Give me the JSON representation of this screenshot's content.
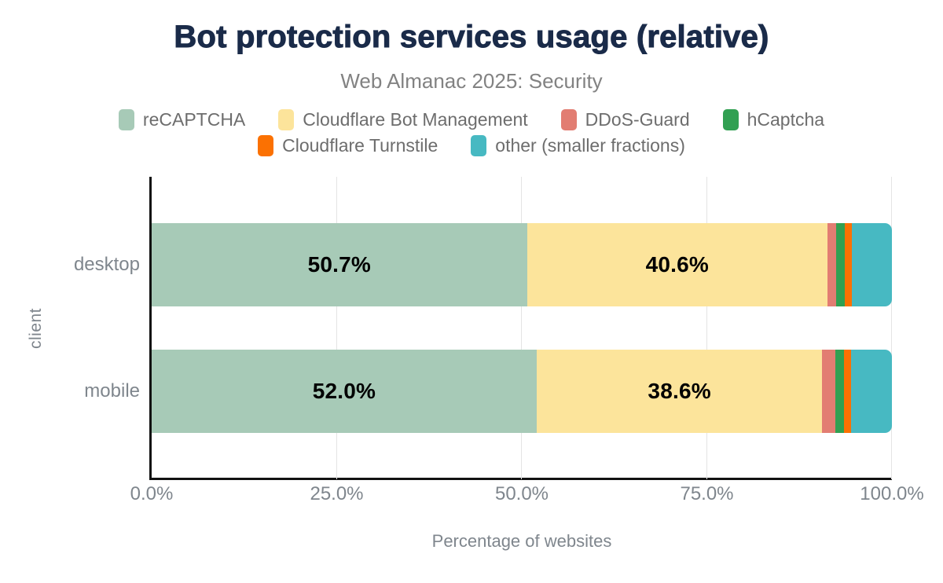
{
  "header": {
    "title": "Bot protection services usage (relative)",
    "subtitle": "Web Almanac 2025: Security"
  },
  "chart_data": {
    "type": "bar",
    "orientation": "horizontal",
    "stacked": true,
    "grid": true,
    "legend_position": "top",
    "legend_row_split": 4,
    "categories": [
      "desktop",
      "mobile"
    ],
    "series": [
      {
        "name": "reCAPTCHA",
        "color": "#a7cab7",
        "values": [
          50.7,
          52.0
        ]
      },
      {
        "name": "Cloudflare Bot Management",
        "color": "#fce49b",
        "values": [
          40.6,
          38.6
        ]
      },
      {
        "name": "DDoS-Guard",
        "color": "#e27d72",
        "values": [
          1.2,
          1.8
        ]
      },
      {
        "name": "hCaptcha",
        "color": "#31a052",
        "values": [
          1.1,
          1.1
        ]
      },
      {
        "name": "Cloudflare Turnstile",
        "color": "#fb7102",
        "values": [
          1.0,
          1.0
        ]
      },
      {
        "name": "other (smaller fractions)",
        "color": "#47b9c2",
        "values": [
          5.4,
          5.5
        ]
      }
    ],
    "data_labels": [
      [
        "50.7%",
        "40.6%",
        "",
        "",
        "",
        ""
      ],
      [
        "52.0%",
        "38.6%",
        "",
        "",
        "",
        ""
      ]
    ],
    "x_ticks": [
      "0.0%",
      "25.0%",
      "50.0%",
      "75.0%",
      "100.0%"
    ],
    "xlim": [
      0,
      100
    ],
    "xlabel": "Percentage of websites",
    "ylabel": "client"
  },
  "colors": {
    "background": "#ffffff",
    "title_color": "#1a2b49",
    "subtitle_color": "#828282",
    "legend_text": "#6d6d6d",
    "axis_text": "#7f868d",
    "data_label": "#000000",
    "axis_line": "#121212",
    "gridline": "#e4e4e4"
  }
}
